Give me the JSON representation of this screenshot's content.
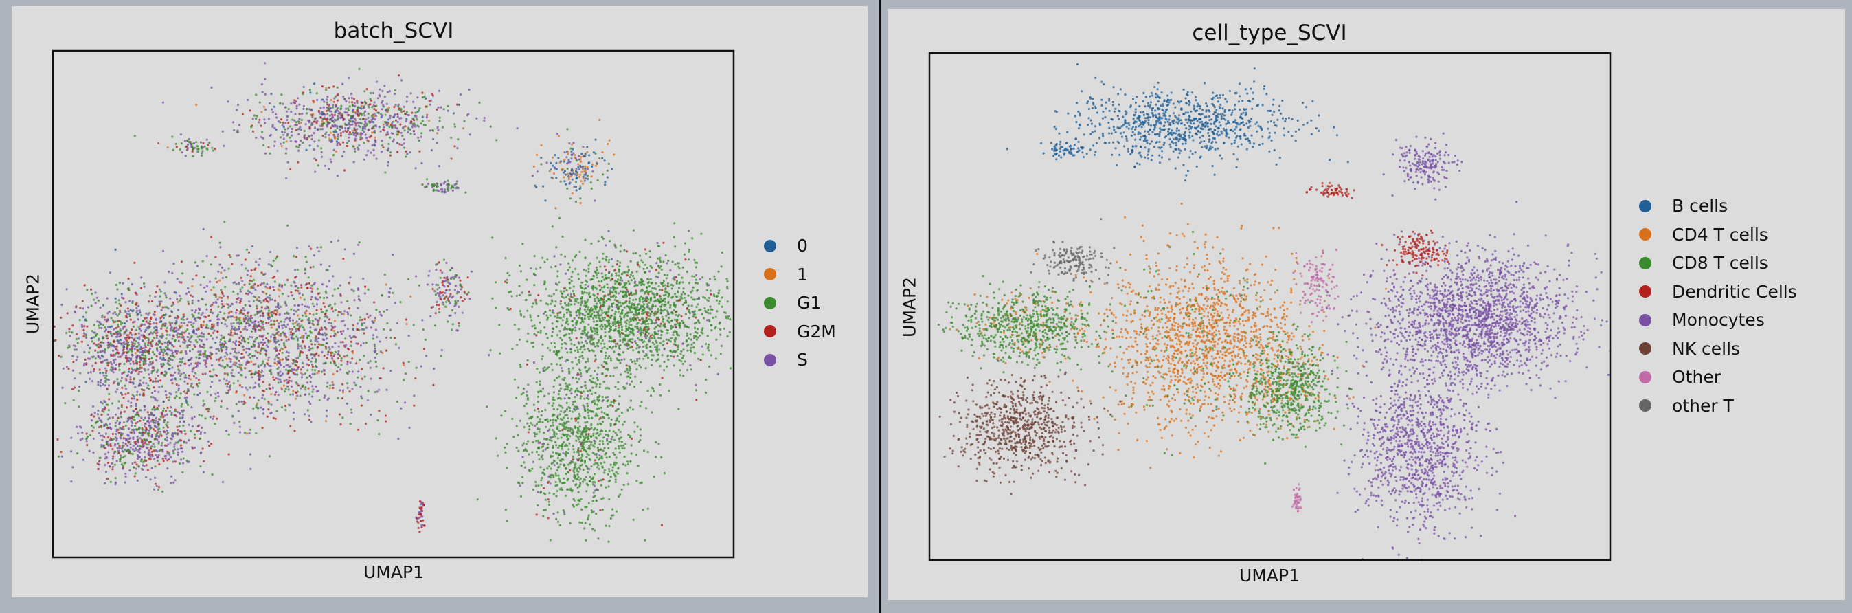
{
  "chart_data": [
    {
      "type": "scatter",
      "title": "batch_SCVI",
      "xlabel": "UMAP1",
      "ylabel": "UMAP2",
      "xlim": [
        0,
        10
      ],
      "ylim": [
        0,
        10
      ],
      "grid": false,
      "legend_position": "right",
      "legend": [
        {
          "label": "0",
          "color": "#1f5f96"
        },
        {
          "label": "1",
          "color": "#d9711c"
        },
        {
          "label": "G1",
          "color": "#3a8a2e"
        },
        {
          "label": "G2M",
          "color": "#b2211e"
        },
        {
          "label": "S",
          "color": "#7850a4"
        }
      ],
      "clusters": [
        {
          "x": 4.3,
          "y": 8.6,
          "sx": 1.4,
          "sy": 0.6,
          "n": 420,
          "mix": {
            "S": 0.5,
            "G1": 0.25,
            "G2M": 0.15,
            "0": 0.05,
            "1": 0.05
          }
        },
        {
          "x": 2.1,
          "y": 8.1,
          "sx": 0.3,
          "sy": 0.15,
          "n": 30,
          "mix": {
            "G1": 0.5,
            "S": 0.3,
            "G2M": 0.2
          }
        },
        {
          "x": 7.7,
          "y": 7.7,
          "sx": 0.45,
          "sy": 0.5,
          "n": 90,
          "mix": {
            "0": 0.35,
            "1": 0.35,
            "S": 0.2,
            "G1": 0.1
          }
        },
        {
          "x": 8.4,
          "y": 4.8,
          "sx": 1.3,
          "sy": 1.1,
          "n": 900,
          "mix": {
            "G1": 0.9,
            "S": 0.05,
            "G2M": 0.05
          }
        },
        {
          "x": 7.7,
          "y": 2.3,
          "sx": 0.8,
          "sy": 1.4,
          "n": 500,
          "mix": {
            "G1": 0.92,
            "S": 0.05,
            "G2M": 0.03
          }
        },
        {
          "x": 3.2,
          "y": 4.3,
          "sx": 1.6,
          "sy": 1.4,
          "n": 900,
          "mix": {
            "S": 0.45,
            "G1": 0.3,
            "G2M": 0.2,
            "1": 0.05
          }
        },
        {
          "x": 1.2,
          "y": 4.2,
          "sx": 0.9,
          "sy": 0.9,
          "n": 450,
          "mix": {
            "S": 0.45,
            "G1": 0.3,
            "G2M": 0.2,
            "0": 0.05
          }
        },
        {
          "x": 1.3,
          "y": 2.4,
          "sx": 0.8,
          "sy": 0.8,
          "n": 350,
          "mix": {
            "S": 0.5,
            "G1": 0.3,
            "G2M": 0.2
          }
        },
        {
          "x": 5.8,
          "y": 5.2,
          "sx": 0.25,
          "sy": 0.6,
          "n": 60,
          "mix": {
            "S": 0.4,
            "G2M": 0.3,
            "G1": 0.3
          }
        },
        {
          "x": 5.7,
          "y": 7.3,
          "sx": 0.3,
          "sy": 0.1,
          "n": 30,
          "mix": {
            "G1": 0.5,
            "S": 0.5
          }
        },
        {
          "x": 5.4,
          "y": 0.8,
          "sx": 0.05,
          "sy": 0.3,
          "n": 20,
          "mix": {
            "S": 0.5,
            "G2M": 0.5
          }
        }
      ]
    },
    {
      "type": "scatter",
      "title": "cell_type_SCVI",
      "xlabel": "UMAP1",
      "ylabel": "UMAP2",
      "xlim": [
        0,
        10
      ],
      "ylim": [
        0,
        10
      ],
      "grid": false,
      "legend_position": "right",
      "legend": [
        {
          "label": "B cells",
          "color": "#1f5f96"
        },
        {
          "label": "CD4 T cells",
          "color": "#d9711c"
        },
        {
          "label": "CD8 T cells",
          "color": "#3a8a2e"
        },
        {
          "label": "Dendritic Cells",
          "color": "#b2211e"
        },
        {
          "label": "Monocytes",
          "color": "#7850a4"
        },
        {
          "label": "NK cells",
          "color": "#6b4035"
        },
        {
          "label": "Other",
          "color": "#c26aa8"
        },
        {
          "label": "other T",
          "color": "#666666"
        }
      ],
      "clusters": [
        {
          "x": 3.7,
          "y": 8.6,
          "sx": 1.4,
          "sy": 0.6,
          "n": 420,
          "mix": {
            "B cells": 1
          }
        },
        {
          "x": 2.0,
          "y": 8.1,
          "sx": 0.3,
          "sy": 0.15,
          "n": 30,
          "mix": {
            "B cells": 1
          }
        },
        {
          "x": 7.3,
          "y": 7.8,
          "sx": 0.4,
          "sy": 0.4,
          "n": 90,
          "mix": {
            "Monocytes": 1
          }
        },
        {
          "x": 8.0,
          "y": 4.75,
          "sx": 1.3,
          "sy": 1.1,
          "n": 900,
          "mix": {
            "Monocytes": 1
          }
        },
        {
          "x": 7.2,
          "y": 2.2,
          "sx": 0.8,
          "sy": 1.4,
          "n": 500,
          "mix": {
            "Monocytes": 1
          }
        },
        {
          "x": 7.2,
          "y": 6.1,
          "sx": 0.4,
          "sy": 0.3,
          "n": 70,
          "mix": {
            "Dendritic Cells": 1
          }
        },
        {
          "x": 5.9,
          "y": 7.3,
          "sx": 0.3,
          "sy": 0.1,
          "n": 30,
          "mix": {
            "Dendritic Cells": 1
          }
        },
        {
          "x": 4.0,
          "y": 4.3,
          "sx": 1.3,
          "sy": 1.5,
          "n": 800,
          "mix": {
            "CD4 T cells": 0.9,
            "CD8 T cells": 0.1
          }
        },
        {
          "x": 1.4,
          "y": 4.6,
          "sx": 0.9,
          "sy": 0.6,
          "n": 350,
          "mix": {
            "CD8 T cells": 0.85,
            "CD4 T cells": 0.15
          }
        },
        {
          "x": 5.3,
          "y": 3.4,
          "sx": 0.6,
          "sy": 0.8,
          "n": 300,
          "mix": {
            "CD8 T cells": 0.9,
            "CD4 T cells": 0.1
          }
        },
        {
          "x": 1.35,
          "y": 2.6,
          "sx": 0.8,
          "sy": 0.8,
          "n": 350,
          "mix": {
            "NK cells": 1
          }
        },
        {
          "x": 2.1,
          "y": 5.9,
          "sx": 0.4,
          "sy": 0.35,
          "n": 80,
          "mix": {
            "other T": 1
          }
        },
        {
          "x": 5.7,
          "y": 5.4,
          "sx": 0.25,
          "sy": 0.6,
          "n": 60,
          "mix": {
            "Other": 1
          }
        },
        {
          "x": 5.4,
          "y": 1.2,
          "sx": 0.05,
          "sy": 0.3,
          "n": 20,
          "mix": {
            "Other": 1
          }
        }
      ]
    }
  ]
}
